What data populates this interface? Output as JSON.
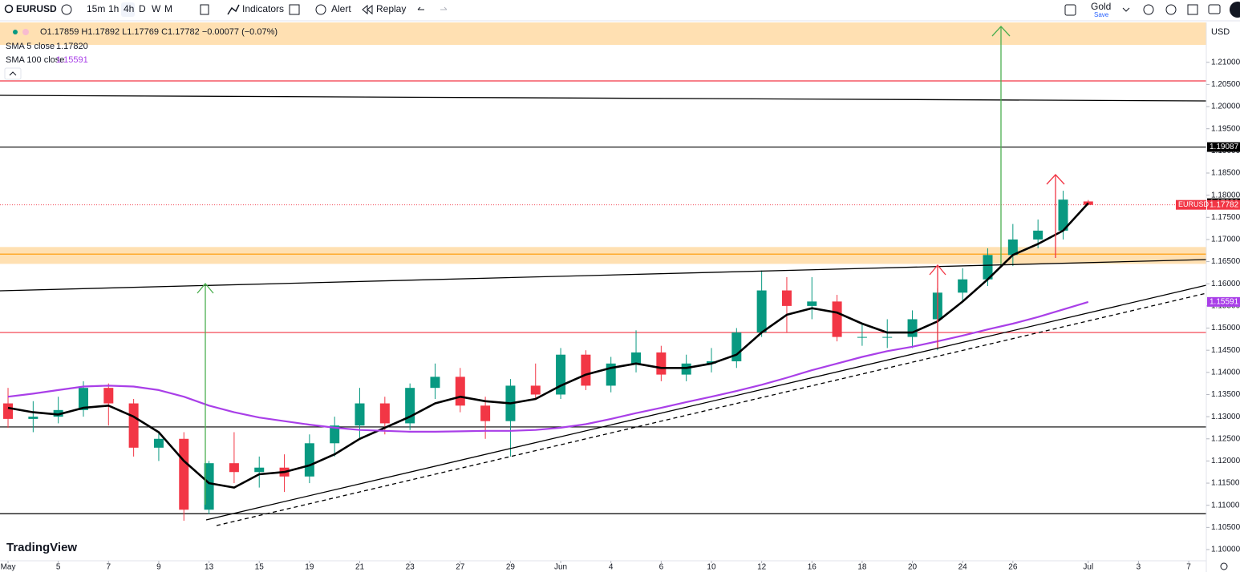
{
  "toolbar": {
    "symbol": "EURUSD",
    "intervals": [
      "15m",
      "1h",
      "4h",
      "D",
      "W",
      "M"
    ],
    "indicators": "Indicators",
    "alert": "Alert",
    "replay": "Replay",
    "layout_name": "Gold",
    "layout_save": "Save"
  },
  "legend": {
    "ohlc": "O1.17859 H1.17892 L1.17769 C1.17782 −0.00077 (−0.07%)",
    "sma5_label": "SMA 5 close",
    "sma5_value": "1.17820",
    "sma100_label": "SMA 100 close",
    "sma100_value": "1.15591"
  },
  "currency": "USD",
  "brand": "TradingView",
  "chart_data": {
    "type": "candlestick",
    "x": [
      0,
      1,
      2,
      3,
      4,
      5,
      6,
      7,
      8,
      9,
      10,
      11,
      12,
      13,
      14,
      15,
      16,
      17,
      18,
      19,
      20,
      21,
      22,
      23,
      24,
      25,
      26,
      27,
      28,
      29,
      30,
      31,
      32,
      33,
      34,
      35,
      36,
      37,
      38,
      39,
      40,
      41,
      42,
      43
    ],
    "open": [
      1.133,
      1.1295,
      1.13,
      1.1315,
      1.1365,
      1.133,
      1.123,
      1.125,
      1.109,
      1.1195,
      1.1175,
      1.1185,
      1.1165,
      1.124,
      1.128,
      1.133,
      1.1285,
      1.1365,
      1.139,
      1.1325,
      1.129,
      1.137,
      1.135,
      1.144,
      1.137,
      1.142,
      1.1445,
      1.1395,
      1.142,
      1.1425,
      1.149,
      1.1585,
      1.155,
      1.156,
      1.148,
      1.148,
      1.148,
      1.152,
      1.158,
      1.161,
      1.1665,
      1.17,
      1.172,
      1.17859
    ],
    "high": [
      1.1365,
      1.1335,
      1.1345,
      1.138,
      1.1375,
      1.134,
      1.1265,
      1.1265,
      1.12,
      1.1265,
      1.121,
      1.1215,
      1.126,
      1.13,
      1.1365,
      1.1345,
      1.1375,
      1.142,
      1.141,
      1.1345,
      1.1385,
      1.142,
      1.1455,
      1.145,
      1.1435,
      1.1495,
      1.146,
      1.144,
      1.1455,
      1.15,
      1.163,
      1.1615,
      1.1615,
      1.1575,
      1.151,
      1.152,
      1.154,
      1.159,
      1.1635,
      1.168,
      1.1735,
      1.1745,
      1.181,
      1.17892
    ],
    "low": [
      1.1275,
      1.1265,
      1.1285,
      1.13,
      1.128,
      1.121,
      1.12,
      1.1065,
      1.108,
      1.115,
      1.114,
      1.113,
      1.115,
      1.121,
      1.125,
      1.126,
      1.127,
      1.134,
      1.131,
      1.125,
      1.121,
      1.134,
      1.134,
      1.136,
      1.1355,
      1.14,
      1.138,
      1.138,
      1.14,
      1.141,
      1.148,
      1.149,
      1.152,
      1.147,
      1.146,
      1.1455,
      1.1455,
      1.145,
      1.156,
      1.1595,
      1.164,
      1.168,
      1.17,
      1.17769
    ],
    "close": [
      1.1295,
      1.13,
      1.1315,
      1.1365,
      1.133,
      1.123,
      1.125,
      1.109,
      1.1195,
      1.1175,
      1.1185,
      1.1165,
      1.124,
      1.128,
      1.133,
      1.1285,
      1.1365,
      1.139,
      1.1325,
      1.129,
      1.137,
      1.135,
      1.144,
      1.137,
      1.142,
      1.1445,
      1.1395,
      1.142,
      1.1425,
      1.149,
      1.1585,
      1.155,
      1.156,
      1.148,
      1.148,
      1.148,
      1.152,
      1.158,
      1.161,
      1.1665,
      1.17,
      1.172,
      1.179,
      1.17782
    ],
    "up_color": "#089981",
    "down_color": "#f23645",
    "series": [
      {
        "name": "SMA 5 close",
        "color": "#000000",
        "values": [
          1.132,
          1.131,
          1.1305,
          1.132,
          1.1325,
          1.13,
          1.1265,
          1.12,
          1.115,
          1.114,
          1.117,
          1.1175,
          1.119,
          1.1215,
          1.125,
          1.1275,
          1.13,
          1.133,
          1.1345,
          1.1335,
          1.133,
          1.134,
          1.137,
          1.1395,
          1.141,
          1.142,
          1.141,
          1.141,
          1.142,
          1.144,
          1.149,
          1.153,
          1.1545,
          1.1535,
          1.151,
          1.149,
          1.149,
          1.1515,
          1.156,
          1.161,
          1.1665,
          1.169,
          1.172,
          1.1782
        ]
      },
      {
        "name": "SMA 100 close",
        "color": "#a93fe8",
        "values": [
          1.1345,
          1.1352,
          1.136,
          1.1368,
          1.137,
          1.1368,
          1.136,
          1.1345,
          1.1325,
          1.131,
          1.1298,
          1.129,
          1.1282,
          1.1275,
          1.127,
          1.1268,
          1.1266,
          1.1266,
          1.1267,
          1.1268,
          1.1268,
          1.127,
          1.1275,
          1.1283,
          1.1295,
          1.1308,
          1.132,
          1.1333,
          1.1345,
          1.1358,
          1.1372,
          1.1388,
          1.1405,
          1.142,
          1.1435,
          1.1448,
          1.1458,
          1.147,
          1.1483,
          1.1497,
          1.151,
          1.1525,
          1.1542,
          1.15591
        ]
      }
    ],
    "levels": [
      {
        "value": 1.2058,
        "color": "#f23645"
      },
      {
        "value": 1.19087,
        "color": "#000000"
      },
      {
        "value": 1.1667,
        "color": "#ff9800"
      },
      {
        "value": 1.149,
        "color": "#f23645"
      },
      {
        "value": 1.12768,
        "color": "#000000"
      },
      {
        "value": 1.1081,
        "color": "#000000"
      }
    ],
    "zones": [
      {
        "range": [
          1.1645,
          1.1683
        ],
        "color": "#ffe0b2"
      }
    ],
    "badges": [
      {
        "value": 1.19087,
        "label": "1.19087",
        "color": "#000000"
      },
      {
        "value": 1.1782,
        "label": "1.17820",
        "color": "#000000"
      },
      {
        "name": "EURUSD",
        "value": 1.17782,
        "label": "1.17782",
        "color": "#f23645"
      },
      {
        "value": 1.15591,
        "label": "1.15591",
        "color": "#a93fe8"
      }
    ],
    "xlim": [
      -0.32,
      47.7
    ],
    "ylim": [
      1.09747,
      1.219
    ],
    "yticks": [
      {
        "value": 1.1,
        "label": "1.10000"
      },
      {
        "value": 1.105,
        "label": "1.10500"
      },
      {
        "value": 1.11,
        "label": "1.11000"
      },
      {
        "value": 1.115,
        "label": "1.11500"
      },
      {
        "value": 1.12,
        "label": "1.12000"
      },
      {
        "value": 1.125,
        "label": "1.12500"
      },
      {
        "value": 1.13,
        "label": "1.13000"
      },
      {
        "value": 1.135,
        "label": "1.13500"
      },
      {
        "value": 1.14,
        "label": "1.14000"
      },
      {
        "value": 1.145,
        "label": "1.14500"
      },
      {
        "value": 1.15,
        "label": "1.15000"
      },
      {
        "value": 1.155,
        "label": "1.15500"
      },
      {
        "value": 1.16,
        "label": "1.16000"
      },
      {
        "value": 1.165,
        "label": "1.16500"
      },
      {
        "value": 1.17,
        "label": "1.17000"
      },
      {
        "value": 1.175,
        "label": "1.17500"
      },
      {
        "value": 1.18,
        "label": "1.18000"
      },
      {
        "value": 1.185,
        "label": "1.18500"
      },
      {
        "value": 1.19,
        "label": "1.19000"
      },
      {
        "value": 1.195,
        "label": "1.19500"
      },
      {
        "value": 1.2,
        "label": "1.20000"
      },
      {
        "value": 1.205,
        "label": "1.20500"
      },
      {
        "value": 1.21,
        "label": "1.21000"
      }
    ],
    "xticks": [
      {
        "value": 0,
        "label": "May"
      },
      {
        "value": 2,
        "label": "5"
      },
      {
        "value": 4,
        "label": "7"
      },
      {
        "value": 6,
        "label": "9"
      },
      {
        "value": 8,
        "label": "13"
      },
      {
        "value": 10,
        "label": "15"
      },
      {
        "value": 12,
        "label": "19"
      },
      {
        "value": 14,
        "label": "21"
      },
      {
        "value": 16,
        "label": "23"
      },
      {
        "value": 18,
        "label": "27"
      },
      {
        "value": 20,
        "label": "29"
      },
      {
        "value": 22,
        "label": "Jun"
      },
      {
        "value": 24,
        "label": "4"
      },
      {
        "value": 26,
        "label": "6"
      },
      {
        "value": 28,
        "label": "10"
      },
      {
        "value": 30,
        "label": "12"
      },
      {
        "value": 32,
        "label": "16"
      },
      {
        "value": 34,
        "label": "18"
      },
      {
        "value": 36,
        "label": "20"
      },
      {
        "value": 38,
        "label": "24"
      },
      {
        "value": 40,
        "label": "26"
      },
      {
        "value": 43,
        "label": "Jul"
      },
      {
        "value": 45,
        "label": "3"
      },
      {
        "value": 47,
        "label": "7"
      }
    ]
  }
}
